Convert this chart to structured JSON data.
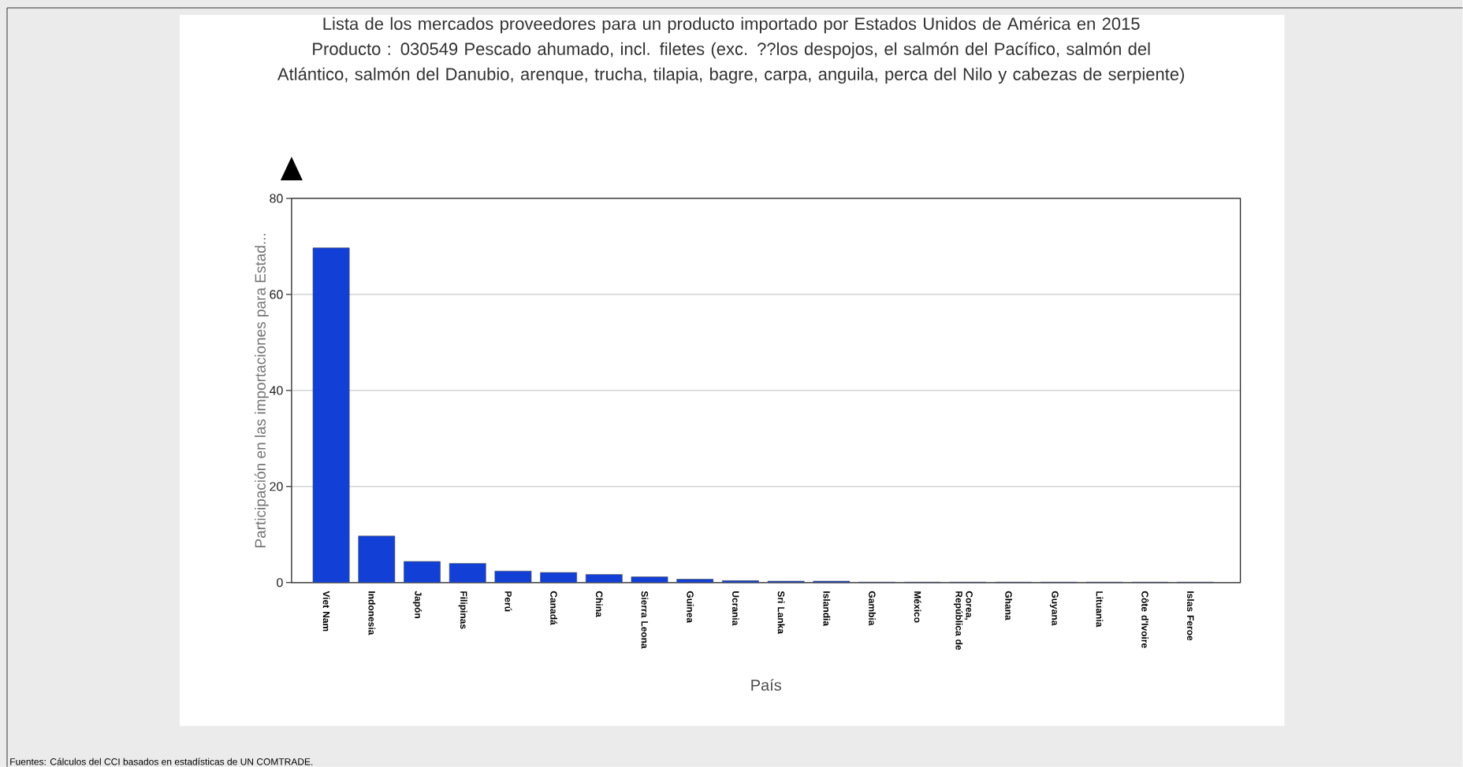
{
  "chart_data": {
    "type": "bar",
    "title": "Lista de los mercados proveedores para un producto importado por Estados Unidos de América en 2015",
    "subtitle": "Producto : 030549 Pescado ahumado, incl. filetes (exc. ??los despojos, el salmón del Pacífico, salmón del Atlántico, salmón del Danubio, arenque, trucha, tilapia, bagre, carpa, anguila, perca del Nilo y cabezas de serpiente)",
    "xlabel": "País",
    "ylabel": "Participación en las importaciones para Estad...",
    "categories": [
      "Viet Nam",
      "Indonesia",
      "Japón",
      "Filipinas",
      "Perú",
      "Canadá",
      "China",
      "Sierra Leona",
      "Guinea",
      "Ucrania",
      "Sri Lanka",
      "Islandia",
      "Gambia",
      "México",
      "Corea, República de",
      "Ghana",
      "Guyana",
      "Lituania",
      "Côte d'Ivoire",
      "Islas Feroe"
    ],
    "values": [
      69.7,
      9.7,
      4.4,
      4.0,
      2.4,
      2.1,
      1.7,
      1.2,
      0.7,
      0.4,
      0.3,
      0.3,
      0.1,
      0.1,
      0.1,
      0.1,
      0.1,
      0.1,
      0.1,
      0.1
    ],
    "color": "#1240d6",
    "ylim": [
      0,
      80
    ],
    "yticks": [
      0,
      20,
      40,
      60,
      80
    ],
    "grid": "y",
    "annotations": [
      "Fuentes: Cálculos del CCI basados en estadísticas de UN COMTRADE."
    ]
  }
}
